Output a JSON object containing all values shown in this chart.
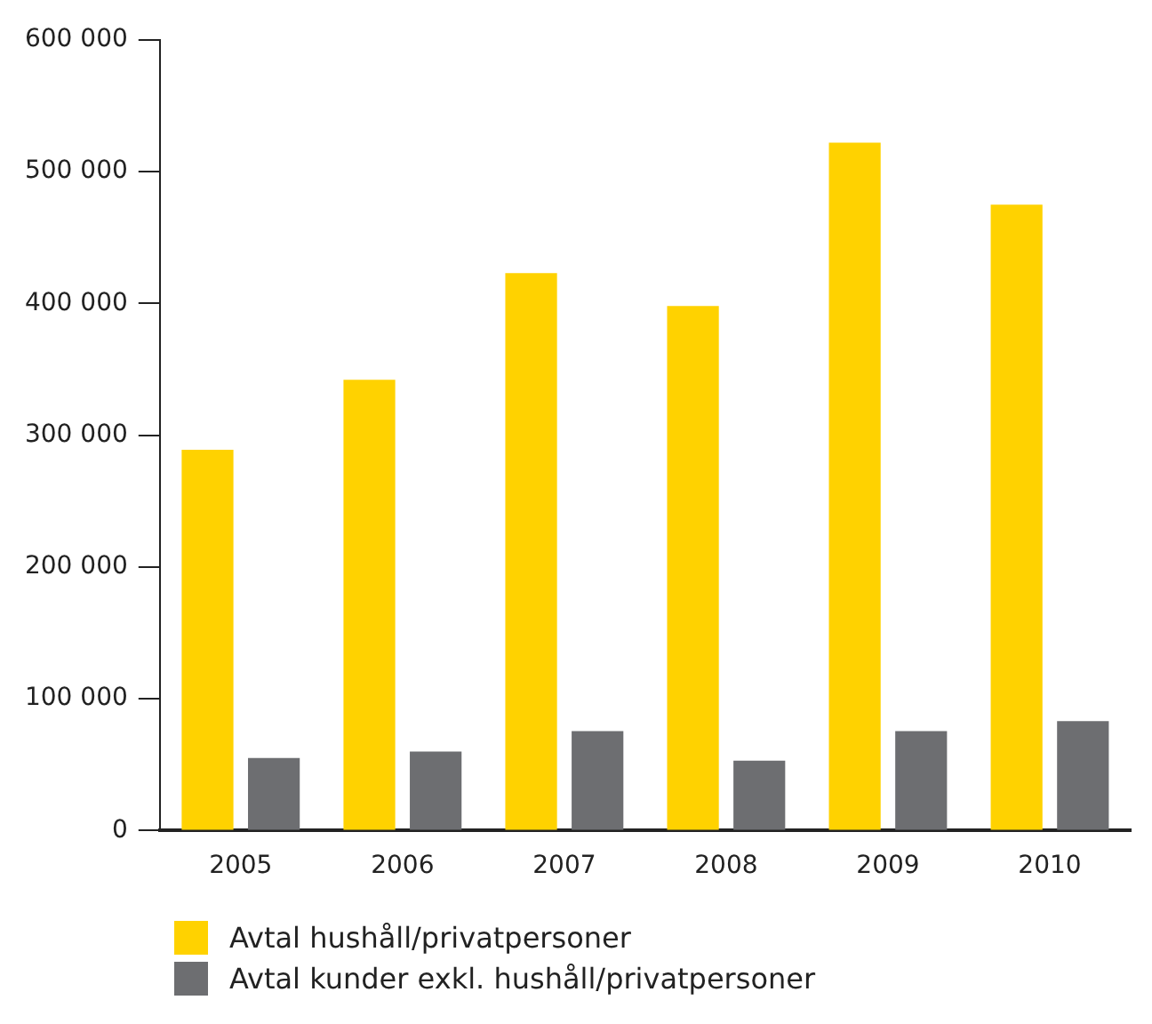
{
  "chart_data": {
    "type": "bar",
    "categories": [
      "2005",
      "2006",
      "2007",
      "2008",
      "2009",
      "2010"
    ],
    "series": [
      {
        "name": "Avtal hushåll/privatpersoner",
        "color": "#ffd200",
        "values": [
          289000,
          342000,
          423000,
          398000,
          522000,
          475000
        ]
      },
      {
        "name": "Avtal kunder exkl. hushåll/privatpersoner",
        "color": "#6d6e71",
        "values": [
          55000,
          60000,
          75500,
          53000,
          75500,
          83000
        ]
      }
    ],
    "ylim": [
      0,
      600000
    ],
    "yticks": [
      {
        "value": 0,
        "label": "0"
      },
      {
        "value": 100000,
        "label": "100 000"
      },
      {
        "value": 200000,
        "label": "200 000"
      },
      {
        "value": 300000,
        "label": "300 000"
      },
      {
        "value": 400000,
        "label": "400 000"
      },
      {
        "value": 500000,
        "label": "500 000"
      },
      {
        "value": 600000,
        "label": "600 000"
      }
    ],
    "grid": false,
    "legend": "bottom left"
  }
}
